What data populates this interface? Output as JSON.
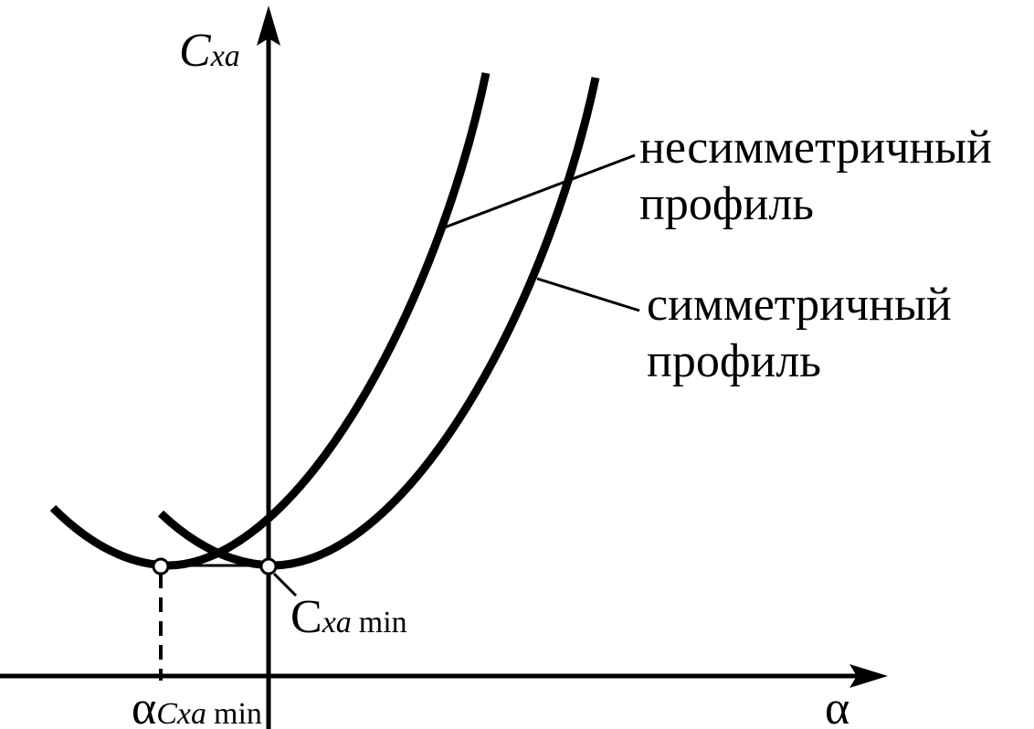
{
  "axes": {
    "y_label": {
      "base": "C",
      "sub": "xa"
    },
    "x_label": "α"
  },
  "curves": [
    {
      "label": [
        "несимметричный",
        "профиль"
      ]
    },
    {
      "label": [
        "симметричный",
        "профиль"
      ]
    }
  ],
  "annotations": {
    "min_point": {
      "base": "C",
      "sub": "xa",
      "sub2": "min"
    },
    "alpha_min": {
      "base": "α",
      "sub": "Cxa",
      "sub2": "min"
    }
  }
}
